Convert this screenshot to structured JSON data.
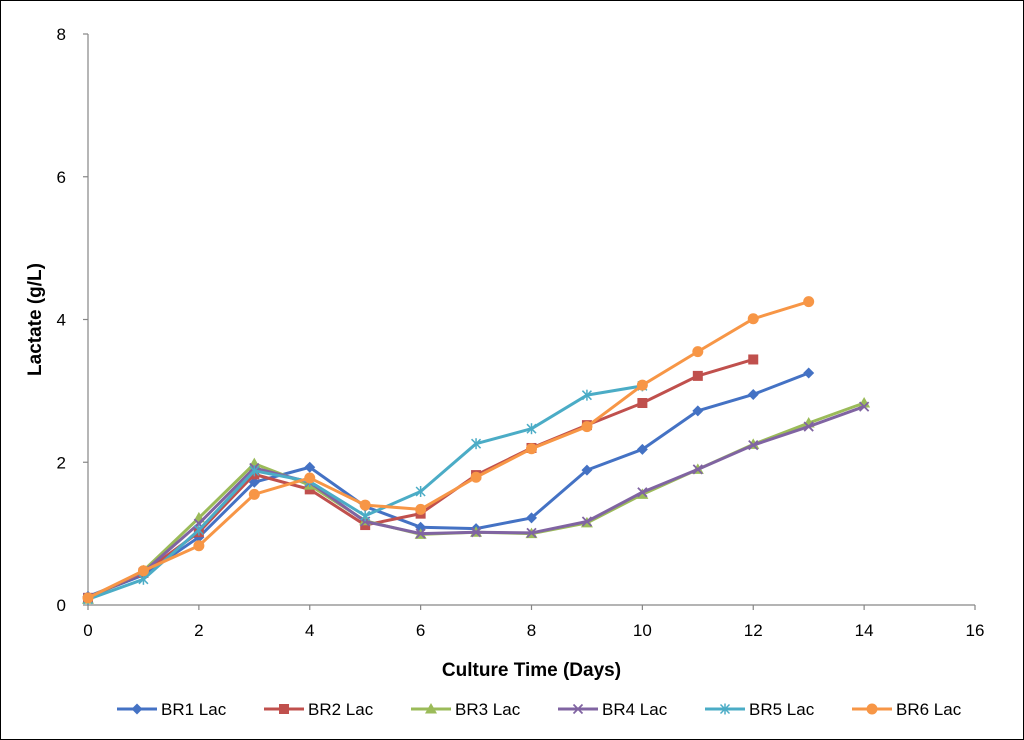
{
  "chart_data": {
    "type": "line",
    "title": "",
    "xlabel": "Culture Time (Days)",
    "ylabel": "Lactate (g/L)",
    "xlim": [
      0,
      16
    ],
    "ylim": [
      0,
      8
    ],
    "xticks": [
      0,
      2,
      4,
      6,
      8,
      10,
      12,
      14,
      16
    ],
    "yticks": [
      0,
      2,
      4,
      6,
      8
    ],
    "grid": false,
    "legend_position": "bottom",
    "series": [
      {
        "name": "BR1 Lac",
        "color": "#4472C4",
        "marker": "diamond",
        "x": [
          0,
          1,
          2,
          3,
          4,
          5,
          6,
          7,
          8,
          9,
          10,
          11,
          12,
          13
        ],
        "y": [
          0.12,
          0.42,
          0.95,
          1.72,
          1.93,
          1.38,
          1.09,
          1.07,
          1.22,
          1.89,
          2.18,
          2.72,
          2.95,
          3.25
        ]
      },
      {
        "name": "BR2 Lac",
        "color": "#C0504D",
        "marker": "square",
        "x": [
          0,
          1,
          2,
          3,
          4,
          5,
          6,
          7,
          8,
          9,
          10,
          11,
          12
        ],
        "y": [
          0.1,
          0.45,
          1.02,
          1.83,
          1.62,
          1.12,
          1.28,
          1.82,
          2.2,
          2.52,
          2.83,
          3.21,
          3.44
        ]
      },
      {
        "name": "BR3 Lac",
        "color": "#9BBB59",
        "marker": "triangle",
        "x": [
          0,
          1,
          2,
          3,
          4,
          5,
          6,
          7,
          8,
          9,
          10,
          11,
          12,
          13,
          14
        ],
        "y": [
          0.08,
          0.48,
          1.22,
          1.98,
          1.68,
          1.18,
          0.99,
          1.02,
          1.0,
          1.15,
          1.55,
          1.9,
          2.25,
          2.55,
          2.83
        ]
      },
      {
        "name": "BR4 Lac",
        "color": "#8064A2",
        "marker": "x",
        "x": [
          0,
          1,
          2,
          3,
          4,
          5,
          6,
          7,
          8,
          9,
          10,
          11,
          12,
          13,
          14
        ],
        "y": [
          0.1,
          0.46,
          1.14,
          1.92,
          1.72,
          1.17,
          1.0,
          1.02,
          1.01,
          1.17,
          1.58,
          1.9,
          2.24,
          2.5,
          2.78
        ]
      },
      {
        "name": "BR5 Lac",
        "color": "#4BACC6",
        "marker": "asterisk",
        "x": [
          0,
          1,
          2,
          3,
          4,
          5,
          6,
          7,
          8,
          9,
          10
        ],
        "y": [
          0.08,
          0.36,
          1.05,
          1.88,
          1.73,
          1.25,
          1.59,
          2.26,
          2.47,
          2.94,
          3.07
        ]
      },
      {
        "name": "BR6 Lac",
        "color": "#F79646",
        "marker": "circle",
        "x": [
          0,
          1,
          2,
          3,
          4,
          5,
          6,
          7,
          8,
          9,
          10,
          11,
          12,
          13
        ],
        "y": [
          0.1,
          0.48,
          0.83,
          1.55,
          1.78,
          1.4,
          1.34,
          1.79,
          2.19,
          2.5,
          3.08,
          3.55,
          4.01,
          4.25
        ]
      }
    ]
  }
}
